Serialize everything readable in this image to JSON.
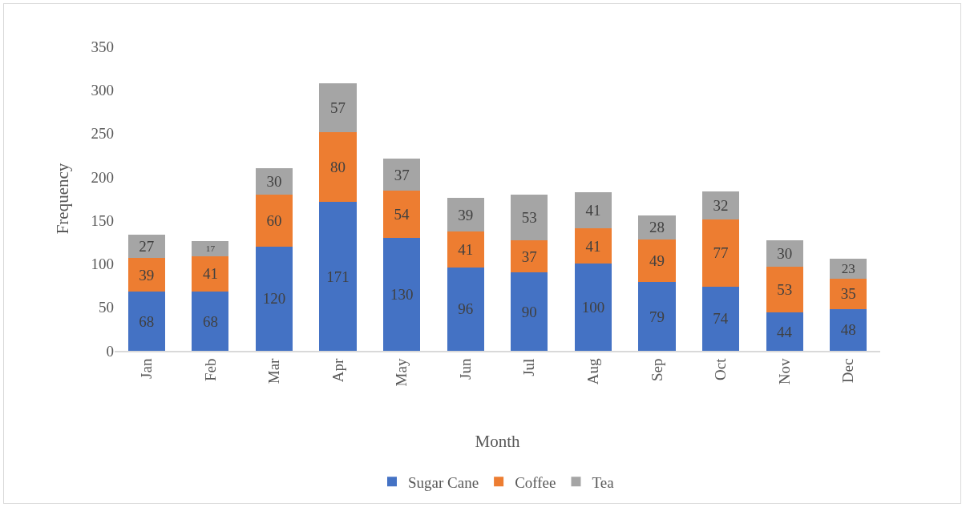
{
  "chart_data": {
    "type": "bar",
    "stacked": true,
    "xlabel": "Month",
    "ylabel": "Frequency",
    "categories": [
      "Jan",
      "Feb",
      "Mar",
      "Apr",
      "May",
      "Jun",
      "Jul",
      "Aug",
      "Sep",
      "Oct",
      "Nov",
      "Dec"
    ],
    "series": [
      {
        "name": "Sugar Cane",
        "color": "#4472c4",
        "values": [
          68,
          68,
          120,
          171,
          130,
          96,
          90,
          100,
          79,
          74,
          44,
          48
        ]
      },
      {
        "name": "Coffee",
        "color": "#ed7d31",
        "values": [
          39,
          41,
          60,
          80,
          54,
          41,
          37,
          41,
          49,
          77,
          53,
          35
        ]
      },
      {
        "name": "Tea",
        "color": "#a5a5a5",
        "values": [
          27,
          17,
          30,
          57,
          37,
          39,
          53,
          41,
          28,
          32,
          30,
          23
        ]
      }
    ],
    "ylim": [
      0,
      350
    ],
    "yticks": [
      0,
      50,
      100,
      150,
      200,
      250,
      300,
      350
    ],
    "data_labels": true,
    "grid": false,
    "legend": "bottom"
  }
}
